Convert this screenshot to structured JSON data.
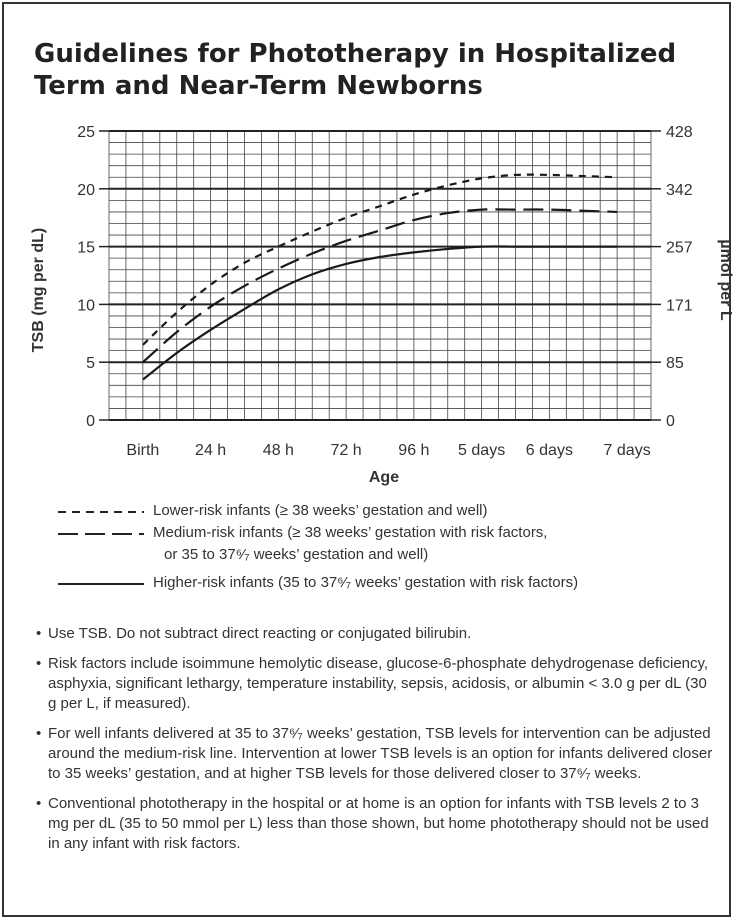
{
  "title": "Guidelines for Phototherapy in Hospitalized Term and Near-Term Newborns",
  "chart_data": {
    "type": "line",
    "xlabel": "Age",
    "ylabel": "TSB (mg per dL)",
    "ylabel_right": "µmol per L",
    "x_tick_labels": [
      "Birth",
      "24 h",
      "48 h",
      "72 h",
      "96 h",
      "5 days",
      "6 days",
      "7 days"
    ],
    "y_ticks": [
      0,
      5,
      10,
      15,
      20,
      25
    ],
    "y_ticks_right": [
      "0",
      "85",
      "171",
      "257",
      "342",
      "428"
    ],
    "x_unit": "hours",
    "xlim": [
      -12,
      180
    ],
    "ylim": [
      0,
      25
    ],
    "series": [
      {
        "name": "Lower-risk infants (≥ 38 weeks’ gestation and well)",
        "style": "short-dash",
        "x": [
          0,
          12,
          24,
          36,
          48,
          60,
          72,
          84,
          96,
          108,
          120,
          132,
          144,
          156,
          168
        ],
        "y": [
          6.5,
          9.3,
          11.7,
          13.6,
          15.0,
          16.3,
          17.5,
          18.5,
          19.5,
          20.3,
          20.9,
          21.2,
          21.2,
          21.1,
          21.0
        ]
      },
      {
        "name": "Medium-risk infants (≥ 38 weeks’ gestation with risk factors, or 35 to 37⁶⁄₇ weeks’ gestation and well)",
        "style": "long-dash",
        "x": [
          0,
          12,
          24,
          36,
          48,
          60,
          72,
          84,
          96,
          108,
          120,
          132,
          144,
          156,
          168
        ],
        "y": [
          5.0,
          7.6,
          9.8,
          11.6,
          13.1,
          14.4,
          15.5,
          16.4,
          17.3,
          17.9,
          18.2,
          18.2,
          18.2,
          18.1,
          18.0
        ]
      },
      {
        "name": "Higher-risk infants (35 to 37⁶⁄₇ weeks’ gestation with risk factors)",
        "style": "solid",
        "x": [
          0,
          12,
          24,
          36,
          48,
          60,
          72,
          84,
          96,
          108,
          120,
          132,
          144,
          156,
          168
        ],
        "y": [
          3.5,
          5.8,
          7.8,
          9.6,
          11.3,
          12.6,
          13.5,
          14.1,
          14.5,
          14.8,
          15.0,
          15.0,
          15.0,
          15.0,
          15.0
        ]
      }
    ],
    "grid": true
  },
  "legend_line2_suffix": "or 35 to 37⁶⁄₇ weeks’ gestation and well)",
  "notes": [
    "Use TSB. Do not subtract direct reacting or conjugated bilirubin.",
    "Risk factors include isoimmune hemolytic disease, glucose-6-phosphate dehydrogenase deficiency, asphyxia, significant lethargy, temperature instability, sepsis, acidosis, or albumin < 3.0 g per dL (30 g per L, if measured).",
    "For well infants delivered at 35 to 37⁶⁄₇ weeks’ gestation, TSB levels for intervention can be adjusted around the medium-risk line. Intervention at lower TSB levels is an option for infants delivered closer to 35 weeks’ gestation, and at higher TSB levels for those delivered closer to 37⁶⁄₇ weeks.",
    "Conventional phototherapy in the hospital or at home is an option for infants with TSB levels 2 to 3 mg per dL (35 to 50 mmol per L) less than those shown, but home phototherapy should not be used in any infant with risk factors."
  ]
}
